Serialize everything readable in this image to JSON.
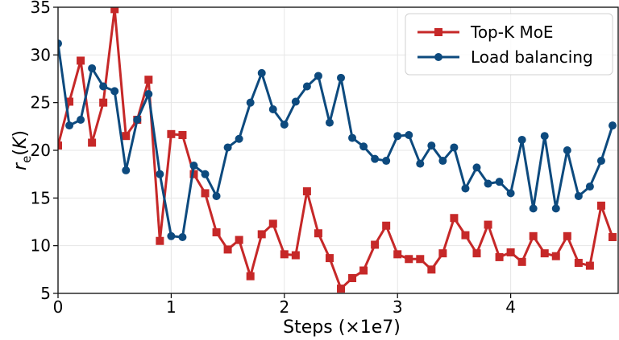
{
  "chart_data": {
    "type": "line",
    "title": "",
    "xlabel": "Steps (×1e7)",
    "ylabel": "r_e(K)",
    "xlim": [
      0,
      4.95
    ],
    "ylim": [
      5,
      35
    ],
    "x_ticks": [
      0,
      1,
      2,
      3,
      4
    ],
    "y_ticks": [
      5,
      10,
      15,
      20,
      25,
      30,
      35
    ],
    "grid": true,
    "legend_position": "top-right",
    "x": [
      0,
      0.1,
      0.2,
      0.3,
      0.4,
      0.5,
      0.6,
      0.7,
      0.8,
      0.9,
      1.0,
      1.1,
      1.2,
      1.3,
      1.4,
      1.5,
      1.6,
      1.7,
      1.8,
      1.9,
      2.0,
      2.1,
      2.2,
      2.3,
      2.4,
      2.5,
      2.6,
      2.7,
      2.8,
      2.9,
      3.0,
      3.1,
      3.2,
      3.3,
      3.4,
      3.5,
      3.6,
      3.7,
      3.8,
      3.9,
      4.0,
      4.1,
      4.2,
      4.3,
      4.4,
      4.5,
      4.6,
      4.7,
      4.8,
      4.9
    ],
    "series": [
      {
        "name": "Top-K MoE",
        "color": "#c62828",
        "marker": "square",
        "values": [
          20.5,
          25.1,
          29.4,
          20.8,
          25.0,
          34.8,
          21.5,
          23.2,
          27.4,
          10.5,
          21.7,
          21.6,
          17.5,
          15.5,
          11.4,
          9.6,
          10.6,
          6.8,
          11.2,
          12.3,
          9.1,
          9.0,
          15.7,
          11.3,
          8.7,
          5.5,
          6.6,
          7.4,
          10.1,
          12.1,
          9.1,
          8.6,
          8.6,
          7.5,
          9.2,
          12.9,
          11.1,
          9.2,
          12.2,
          8.8,
          9.3,
          8.3,
          11.0,
          9.2,
          8.9,
          11.0,
          8.2,
          7.9,
          14.2,
          10.9
        ]
      },
      {
        "name": "Load balancing",
        "color": "#0d4a7e",
        "marker": "circle",
        "values": [
          31.2,
          22.6,
          23.2,
          28.6,
          26.7,
          26.2,
          17.9,
          23.2,
          25.9,
          17.5,
          11.0,
          10.9,
          18.4,
          17.5,
          15.2,
          20.3,
          21.2,
          25.0,
          28.1,
          24.3,
          22.7,
          25.1,
          26.7,
          27.8,
          22.9,
          27.6,
          21.3,
          20.4,
          19.1,
          18.9,
          21.5,
          21.6,
          18.6,
          20.5,
          18.9,
          20.3,
          16.0,
          18.2,
          16.5,
          16.7,
          15.5,
          21.1,
          13.9,
          21.5,
          13.9,
          20.0,
          15.2,
          16.2,
          18.9,
          22.6
        ]
      }
    ]
  }
}
